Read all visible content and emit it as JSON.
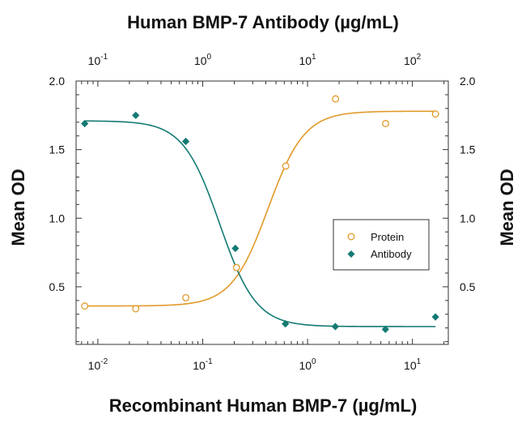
{
  "chart_data": {
    "type": "scatter",
    "title": "",
    "top_axis": {
      "label": "Human BMP-7 Antibody (µg/mL)",
      "scale": "log",
      "range": [
        0.062,
        220
      ],
      "ticks": [
        {
          "value": 0.1,
          "base": "10",
          "exp": "-1"
        },
        {
          "value": 1,
          "base": "10",
          "exp": "0"
        },
        {
          "value": 10,
          "base": "10",
          "exp": "1"
        },
        {
          "value": 100,
          "base": "10",
          "exp": "2"
        }
      ]
    },
    "bottom_axis": {
      "label": "Recombinant Human BMP-7 (µg/mL)",
      "scale": "log",
      "range": [
        0.0062,
        22
      ],
      "ticks": [
        {
          "value": 0.01,
          "base": "10",
          "exp": "-2"
        },
        {
          "value": 0.1,
          "base": "10",
          "exp": "-1"
        },
        {
          "value": 1,
          "base": "10",
          "exp": "0"
        },
        {
          "value": 10,
          "base": "10",
          "exp": "1"
        }
      ]
    },
    "left_axis": {
      "label": "Mean OD",
      "range": [
        0.08,
        2.0
      ],
      "ticks": [
        {
          "value": 0.5,
          "label": "0.5"
        },
        {
          "value": 1.0,
          "label": "1.0"
        },
        {
          "value": 1.5,
          "label": "1.5"
        },
        {
          "value": 2.0,
          "label": "2.0"
        }
      ]
    },
    "right_axis": {
      "label": "Mean OD",
      "range": [
        0.08,
        2.0
      ],
      "ticks": [
        {
          "value": 0.5,
          "label": "0.5"
        },
        {
          "value": 1.0,
          "label": "1.0"
        },
        {
          "value": 1.5,
          "label": "1.5"
        },
        {
          "value": 2.0,
          "label": "2.0"
        }
      ]
    },
    "grid": false,
    "legend_position": "center-right",
    "series": [
      {
        "name": "Protein",
        "axis": "bottom",
        "marker": "open-circle",
        "color": "#e19a2a",
        "x": [
          0.0075,
          0.023,
          0.069,
          0.21,
          0.62,
          1.85,
          5.55,
          16.6
        ],
        "y": [
          0.36,
          0.34,
          0.42,
          0.64,
          1.38,
          1.87,
          1.69,
          1.76
        ],
        "fit": {
          "bottom": 0.36,
          "top": 1.78,
          "ec50": 0.42,
          "hill": 2.5
        }
      },
      {
        "name": "Antibody",
        "axis": "top",
        "marker": "filled-diamond",
        "color": "#137a72",
        "x": [
          0.075,
          0.23,
          0.69,
          2.05,
          6.15,
          18.4,
          55.3,
          166
        ],
        "y": [
          1.69,
          1.75,
          1.56,
          0.78,
          0.23,
          0.21,
          0.19,
          0.28
        ],
        "fit": {
          "bottom": 0.21,
          "top": 1.71,
          "ec50": 1.45,
          "hill": 2.5
        }
      }
    ]
  }
}
